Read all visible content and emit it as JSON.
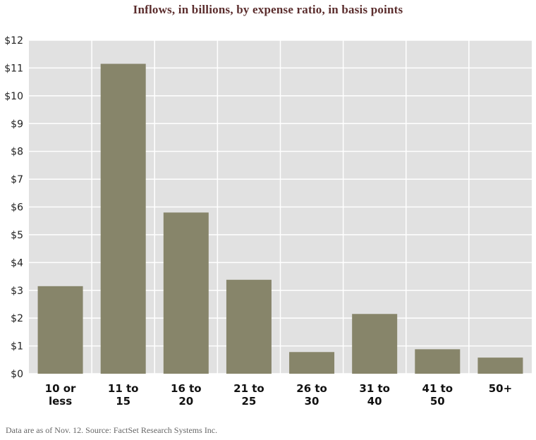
{
  "chart_data": {
    "type": "bar",
    "title": "Inflows, in billions, by expense ratio, in basis points",
    "categories": [
      [
        "10 or",
        "less"
      ],
      [
        "11 to",
        "15"
      ],
      [
        "16 to",
        "20"
      ],
      [
        "21 to",
        "25"
      ],
      [
        "26 to",
        "30"
      ],
      [
        "31 to",
        "40"
      ],
      [
        "41 to",
        "50"
      ],
      [
        "50+"
      ]
    ],
    "values": [
      3.15,
      11.15,
      5.8,
      3.38,
      0.78,
      2.15,
      0.88,
      0.58
    ],
    "ylim": [
      0,
      12
    ],
    "yticks": [
      "$0",
      "$1",
      "$2",
      "$3",
      "$4",
      "$5",
      "$6",
      "$7",
      "$8",
      "$9",
      "$10",
      "$11",
      "$12"
    ],
    "grid": true,
    "colors": {
      "bar": "#87856a",
      "plot_bg": "#e1e1e1",
      "grid": "#ffffff",
      "title": "#5b2d2d"
    }
  },
  "footnote": "Data are as of Nov. 12. Source: FactSet Research Systems Inc."
}
